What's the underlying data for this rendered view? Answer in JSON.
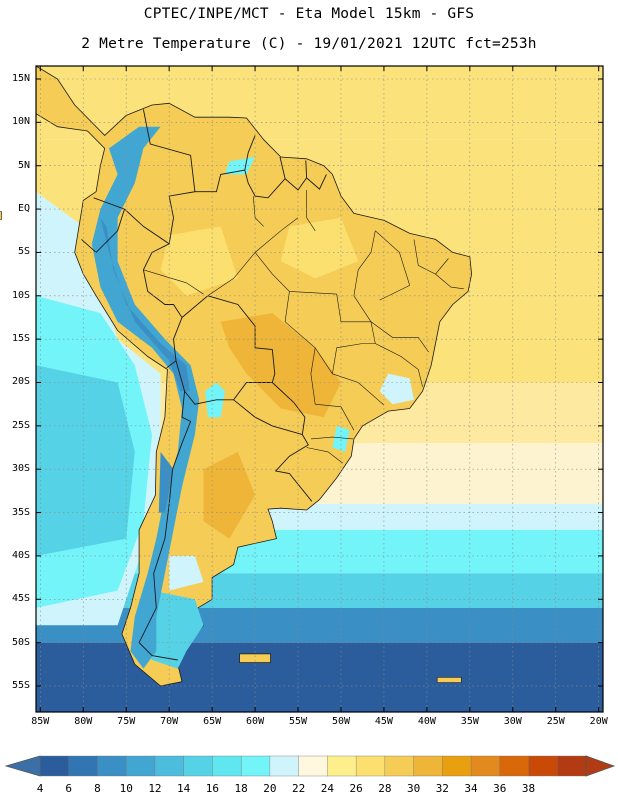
{
  "header": {
    "line1": "CPTEC/INPE/MCT -  Eta Model 15km - GFS",
    "line2": "2 Metre Temperature (C) - 19/01/2021 12UTC fct=253h"
  },
  "axes": {
    "lat_labels": [
      {
        "label": "15N",
        "lat": 15
      },
      {
        "label": "10N",
        "lat": 10
      },
      {
        "label": "5N",
        "lat": 5
      },
      {
        "label": "EQ",
        "lat": 0
      },
      {
        "label": "5S",
        "lat": -5
      },
      {
        "label": "10S",
        "lat": -10
      },
      {
        "label": "15S",
        "lat": -15
      },
      {
        "label": "20S",
        "lat": -20
      },
      {
        "label": "25S",
        "lat": -25
      },
      {
        "label": "30S",
        "lat": -30
      },
      {
        "label": "35S",
        "lat": -35
      },
      {
        "label": "40S",
        "lat": -40
      },
      {
        "label": "45S",
        "lat": -45
      },
      {
        "label": "50S",
        "lat": -50
      },
      {
        "label": "55S",
        "lat": -55
      }
    ],
    "lon_labels": [
      {
        "label": "85W",
        "lon": -85
      },
      {
        "label": "80W",
        "lon": -80
      },
      {
        "label": "75W",
        "lon": -75
      },
      {
        "label": "70W",
        "lon": -70
      },
      {
        "label": "65W",
        "lon": -65
      },
      {
        "label": "60W",
        "lon": -60
      },
      {
        "label": "55W",
        "lon": -55
      },
      {
        "label": "50W",
        "lon": -50
      },
      {
        "label": "45W",
        "lon": -45
      },
      {
        "label": "40W",
        "lon": -40
      },
      {
        "label": "35W",
        "lon": -35
      },
      {
        "label": "30W",
        "lon": -30
      },
      {
        "label": "25W",
        "lon": -25
      },
      {
        "label": "20W",
        "lon": -20
      }
    ],
    "lon_range": [
      -85.5,
      -19.5
    ],
    "lat_range": [
      -58,
      16.5
    ],
    "grid": true
  },
  "colorbar": {
    "values": [
      "4",
      "6",
      "8",
      "10",
      "12",
      "14",
      "16",
      "18",
      "20",
      "22",
      "24",
      "26",
      "28",
      "30",
      "32",
      "34",
      "36",
      "38"
    ],
    "colors": [
      "#2b5c9c",
      "#3275b3",
      "#3a8fc4",
      "#42a6d2",
      "#4dbddd",
      "#55d2e6",
      "#5fe6ee",
      "#72f4f8",
      "#d0f4fb",
      "#fff7de",
      "#fdf08c",
      "#fbe06f",
      "#f5cc55",
      "#efb538",
      "#e8a010",
      "#e28a1d",
      "#d9680b",
      "#c84a06",
      "#b33b14"
    ],
    "low_color": "#3a6fa8",
    "high_color": "#b33b14"
  },
  "map": {
    "ocean_tropical": "#fbe27a",
    "ocean_pale": "#fdf3d0",
    "ocean_cool": "#72f4f8",
    "ocean_mid": "#55d2e6",
    "ocean_cold": "#3a8fc4",
    "ocean_deep": "#2b5c9c",
    "land_warm": "#f5cc55",
    "land_hot": "#efb538",
    "andes": "#42a6d2",
    "border_color": "#1a1a1a",
    "grid_color": "#8a8a8a"
  }
}
